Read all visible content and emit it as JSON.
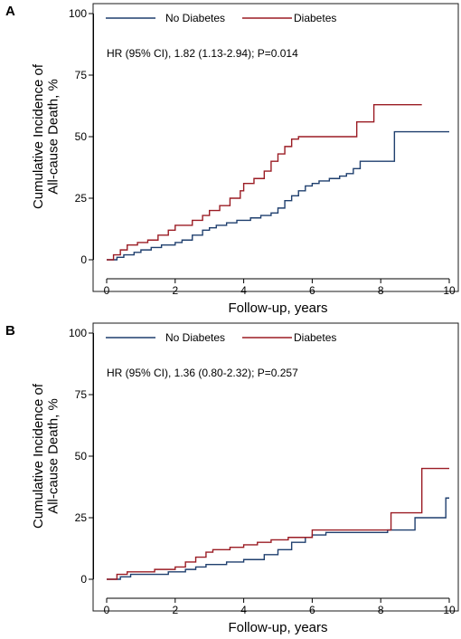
{
  "chart_data": [
    {
      "type": "line",
      "panel": "A",
      "xlabel": "Follow-up, years",
      "ylabel": [
        "Cumulative Incidence of",
        "All-cause Death, %"
      ],
      "xlim": [
        0,
        10
      ],
      "ylim": [
        0,
        100
      ],
      "xticks": [
        0,
        2,
        4,
        6,
        8,
        10
      ],
      "yticks": [
        0,
        25,
        50,
        75,
        100
      ],
      "annotation": "HR (95% CI), 1.82 (1.13-2.94); P=0.014",
      "legend_position": "top",
      "series": [
        {
          "name": "No Diabetes",
          "color": "#1f3f6e",
          "x": [
            0,
            0.3,
            0.5,
            0.8,
            1.0,
            1.3,
            1.6,
            2.0,
            2.2,
            2.5,
            2.8,
            3.0,
            3.2,
            3.5,
            3.8,
            4.2,
            4.5,
            4.8,
            5.0,
            5.2,
            5.4,
            5.6,
            5.8,
            6.0,
            6.2,
            6.5,
            6.8,
            7.0,
            7.2,
            7.4,
            8.4,
            10.0
          ],
          "y": [
            0,
            1,
            2,
            3,
            4,
            5,
            6,
            7,
            8,
            10,
            12,
            13,
            14,
            15,
            16,
            17,
            18,
            19,
            21,
            24,
            26,
            28,
            30,
            31,
            32,
            33,
            34,
            35,
            37,
            40,
            52,
            52
          ]
        },
        {
          "name": "Diabetes",
          "color": "#9b1c24",
          "x": [
            0,
            0.2,
            0.4,
            0.6,
            0.9,
            1.2,
            1.5,
            1.8,
            2.0,
            2.5,
            2.8,
            3.0,
            3.3,
            3.6,
            3.9,
            4.0,
            4.3,
            4.6,
            4.8,
            5.0,
            5.2,
            5.4,
            5.6,
            7.3,
            7.8,
            9.2
          ],
          "y": [
            0,
            2,
            4,
            6,
            7,
            8,
            10,
            12,
            14,
            16,
            18,
            20,
            22,
            25,
            28,
            31,
            33,
            36,
            40,
            43,
            46,
            49,
            50,
            56,
            63,
            63
          ]
        }
      ]
    },
    {
      "type": "line",
      "panel": "B",
      "xlabel": "Follow-up, years",
      "ylabel": [
        "Cumulative Incidence of",
        "All-cause Death, %"
      ],
      "xlim": [
        0,
        10
      ],
      "ylim": [
        0,
        100
      ],
      "xticks": [
        0,
        2,
        4,
        6,
        8,
        10
      ],
      "yticks": [
        0,
        25,
        50,
        75,
        100
      ],
      "annotation": "HR (95% CI), 1.36 (0.80-2.32); P=0.257",
      "legend_position": "top",
      "series": [
        {
          "name": "No Diabetes",
          "color": "#1f3f6e",
          "x": [
            0,
            0.4,
            0.7,
            1.0,
            1.8,
            2.3,
            2.6,
            2.9,
            3.2,
            3.5,
            4.0,
            4.6,
            5.0,
            5.4,
            5.8,
            6.0,
            6.4,
            6.8,
            8.2,
            8.6,
            9.0,
            9.9,
            10.0
          ],
          "y": [
            0,
            1,
            2,
            2,
            3,
            4,
            5,
            6,
            6,
            7,
            8,
            10,
            12,
            15,
            17,
            18,
            19,
            19,
            20,
            20,
            25,
            33,
            33
          ]
        },
        {
          "name": "Diabetes",
          "color": "#9b1c24",
          "x": [
            0,
            0.3,
            0.6,
            1.0,
            1.4,
            1.7,
            2.0,
            2.3,
            2.6,
            2.9,
            3.1,
            3.6,
            4.0,
            4.4,
            4.8,
            5.3,
            6.0,
            8.3,
            9.2,
            10.0
          ],
          "y": [
            0,
            2,
            3,
            3,
            4,
            4,
            5,
            7,
            9,
            11,
            12,
            13,
            14,
            15,
            16,
            17,
            20,
            27,
            45,
            45
          ]
        }
      ]
    }
  ]
}
